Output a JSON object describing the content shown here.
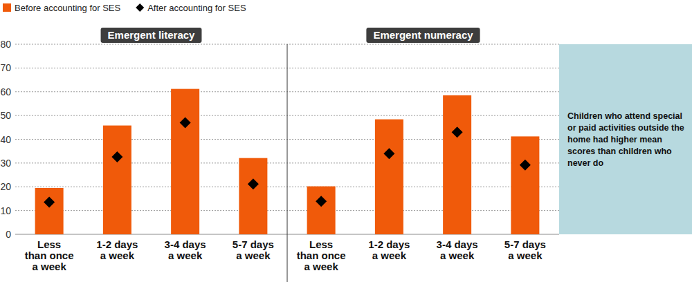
{
  "chart_data": {
    "type": "bar",
    "panels": [
      "Emergent literacy",
      "Emergent numeracy"
    ],
    "categories": [
      "Less\nthan once\na week",
      "1-2 days\na week",
      "3-4 days\na week",
      "5-7 days\na week",
      "Less\nthan once\na week",
      "1-2 days\na week",
      "3-4 days\na week",
      "5-7 days\na week"
    ],
    "series": [
      {
        "name": "Before accounting for SES",
        "type": "bar",
        "color": "#f05a0a",
        "values": [
          19.5,
          45.8,
          61.2,
          32.1,
          20.2,
          48.4,
          58.5,
          41.2
        ]
      },
      {
        "name": "After accounting for SES",
        "type": "scatter",
        "marker": "diamond",
        "color": "#000000",
        "values": [
          13.5,
          32.6,
          47.0,
          21.2,
          13.9,
          34.0,
          43.0,
          29.2
        ]
      }
    ],
    "annotation": "Children who attend special or paid activities outside the home had higher mean scores than children who never do",
    "ylim": [
      0,
      80
    ],
    "yticks": [
      0,
      10,
      20,
      30,
      40,
      50,
      60,
      70,
      80
    ],
    "grid": true,
    "legend": "top-left"
  }
}
